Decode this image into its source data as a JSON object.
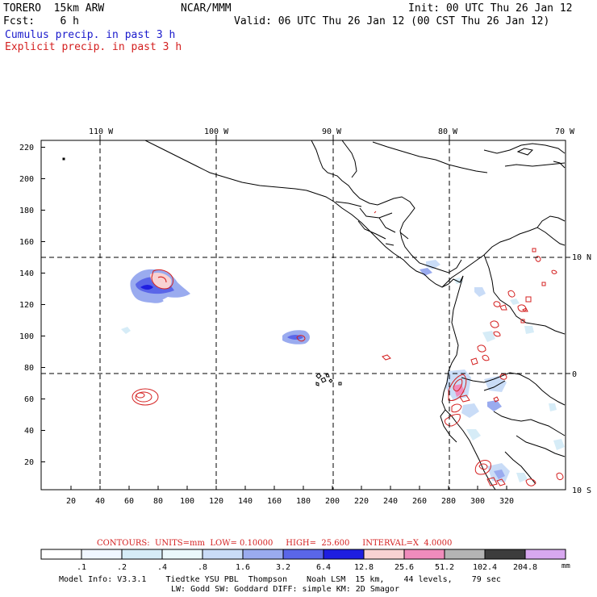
{
  "header": {
    "model": "TORERO  15km ARW",
    "org": "NCAR/MMM",
    "init": "Init: 00 UTC Thu 26 Jan 12",
    "fcst": "Fcst:    6 h",
    "valid": "Valid: 06 UTC Thu 26 Jan 12 (00 CST Thu 26 Jan 12)",
    "field1": "Cumulus precip. in past 3 h",
    "field2": "Explicit precip. in past 3 h",
    "field1_color": "#1a1acc",
    "field2_color": "#d42020"
  },
  "axes": {
    "top_lon_labels": [
      "110 W",
      "100 W",
      "90 W",
      "80 W",
      "70 W"
    ],
    "right_lat_labels": [
      "10 N",
      "0",
      "10 S"
    ],
    "left_y_ticks": [
      "20",
      "40",
      "60",
      "80",
      "100",
      "120",
      "140",
      "160",
      "180",
      "200",
      "220"
    ],
    "bottom_x_ticks": [
      "20",
      "40",
      "60",
      "80",
      "100",
      "120",
      "140",
      "160",
      "180",
      "200",
      "220",
      "240",
      "260",
      "280",
      "300",
      "320"
    ]
  },
  "contour_info": {
    "text": "CONTOURS:  UNITS=mm  LOW= 0.10000     HIGH=  25.600     INTERVAL=X  4.0000",
    "color": "#d42020"
  },
  "colorbar": {
    "labels": [
      ".1",
      ".2",
      ".4",
      ".8",
      "1.6",
      "3.2",
      "6.4",
      "12.8",
      "25.6",
      "51.2",
      "102.4",
      "204.8"
    ],
    "units": "mm",
    "colors": [
      "#ffffff",
      "#f0f6ff",
      "#d6ecf7",
      "#eaf8fb",
      "#c9dcf7",
      "#9aabef",
      "#5a66e8",
      "#1e1ee0",
      "#f8d2d2",
      "#f08cbc",
      "#b4b4b4",
      "#3c3c3c",
      "#d8a8f0"
    ]
  },
  "footer": {
    "line1": "Model Info: V3.3.1    Tiedtke YSU PBL  Thompson    Noah LSM  15 km,    44 levels,    79 sec",
    "line2": "LW: Godd SW: Goddard DIFF: simple KM: 2D Smagor"
  }
}
